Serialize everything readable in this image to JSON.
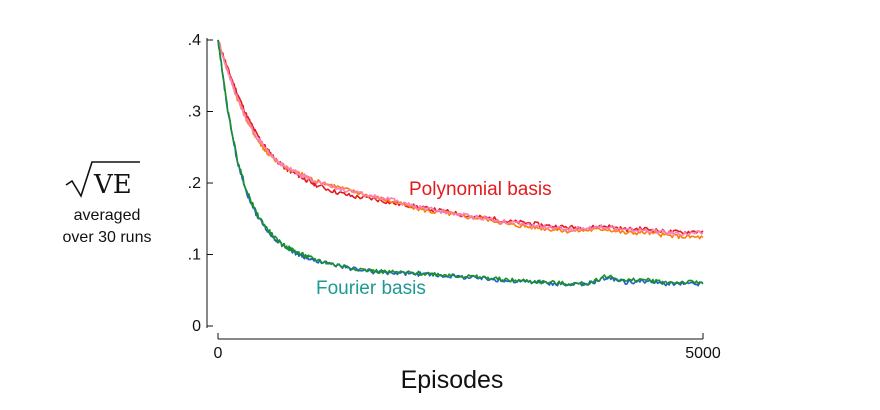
{
  "chart_data": {
    "type": "line",
    "title": "",
    "xlabel": "Episodes",
    "ylabel": {
      "main": "VE",
      "line2": "averaged",
      "line3": "over 30 runs"
    },
    "xlim": [
      0,
      5000
    ],
    "ylim": [
      0,
      0.4
    ],
    "x_ticks": [
      {
        "value": 0,
        "label": "0"
      },
      {
        "value": 5000,
        "label": "5000"
      }
    ],
    "y_ticks": [
      {
        "value": 0,
        "label": "0"
      },
      {
        "value": 0.1,
        "label": ".1"
      },
      {
        "value": 0.2,
        "label": ".2"
      },
      {
        "value": 0.3,
        "label": ".3"
      },
      {
        "value": 0.4,
        "label": ".4"
      }
    ],
    "grid": false,
    "legend": "none",
    "x": [
      0,
      100,
      200,
      300,
      400,
      500,
      600,
      700,
      800,
      900,
      1000,
      1200,
      1400,
      1600,
      1800,
      2000,
      2200,
      2400,
      2600,
      2800,
      3000,
      3200,
      3400,
      3600,
      3800,
      4000,
      4200,
      4400,
      4600,
      4800,
      5000
    ],
    "series": [
      {
        "color": "#e41a1c",
        "values": [
          0.4,
          0.36,
          0.325,
          0.293,
          0.268,
          0.248,
          0.232,
          0.22,
          0.213,
          0.205,
          0.198,
          0.188,
          0.181,
          0.178,
          0.172,
          0.168,
          0.163,
          0.159,
          0.153,
          0.151,
          0.146,
          0.144,
          0.14,
          0.138,
          0.137,
          0.14,
          0.135,
          0.136,
          0.132,
          0.131,
          0.133
        ]
      },
      {
        "color": "#ff7f00",
        "values": [
          0.4,
          0.357,
          0.318,
          0.287,
          0.262,
          0.243,
          0.231,
          0.222,
          0.216,
          0.21,
          0.203,
          0.196,
          0.188,
          0.181,
          0.174,
          0.166,
          0.16,
          0.157,
          0.152,
          0.149,
          0.142,
          0.139,
          0.136,
          0.133,
          0.134,
          0.136,
          0.13,
          0.131,
          0.127,
          0.125,
          0.124
        ]
      },
      {
        "color": "#f781bf",
        "values": [
          0.4,
          0.356,
          0.318,
          0.288,
          0.264,
          0.245,
          0.232,
          0.222,
          0.215,
          0.209,
          0.203,
          0.194,
          0.187,
          0.181,
          0.176,
          0.168,
          0.163,
          0.158,
          0.154,
          0.15,
          0.145,
          0.141,
          0.138,
          0.135,
          0.137,
          0.139,
          0.134,
          0.134,
          0.131,
          0.129,
          0.13
        ]
      },
      {
        "color": "#1f5fcf",
        "values": [
          0.4,
          0.3,
          0.23,
          0.185,
          0.155,
          0.135,
          0.12,
          0.11,
          0.102,
          0.096,
          0.092,
          0.085,
          0.08,
          0.076,
          0.074,
          0.073,
          0.072,
          0.07,
          0.068,
          0.066,
          0.063,
          0.062,
          0.06,
          0.058,
          0.058,
          0.068,
          0.061,
          0.063,
          0.059,
          0.059,
          0.059
        ]
      },
      {
        "color": "#1a8f2c",
        "values": [
          0.4,
          0.302,
          0.232,
          0.187,
          0.157,
          0.137,
          0.121,
          0.111,
          0.104,
          0.098,
          0.093,
          0.086,
          0.081,
          0.077,
          0.075,
          0.074,
          0.073,
          0.071,
          0.069,
          0.067,
          0.064,
          0.063,
          0.061,
          0.059,
          0.059,
          0.07,
          0.063,
          0.065,
          0.061,
          0.061,
          0.061
        ]
      }
    ],
    "annotations": [
      {
        "text": "Polynomial basis",
        "color": "#e41a1c"
      },
      {
        "text": "Fourier basis",
        "color": "#1e9a8e"
      }
    ]
  }
}
